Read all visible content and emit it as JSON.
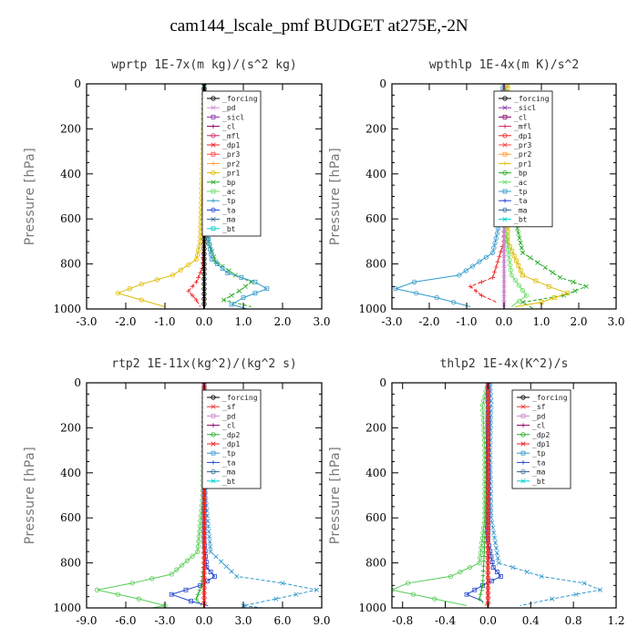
{
  "figure_title": "cam144_lscale_pmf  BUDGET at275E,-2N",
  "colors": {
    "forcing": "#000000",
    "sicl": "#cc88cc",
    "sicl2": "#8833aa",
    "cl": "#880066",
    "mfl": "#cc2266",
    "dp1": "#ee2222",
    "pr3": "#ff4444",
    "pr2": "#ff9933",
    "pr1": "#ddbb00",
    "bp": "#22aa22",
    "ac": "#66dd66",
    "tp": "#3399cc",
    "ta": "#2244cc",
    "ma": "#336699",
    "bt": "#00cccc",
    "sf": "#ee3333",
    "pd": "#ffaa33",
    "cl_yellow": "#ddbb00",
    "dp2": "#22aa22",
    "dp1_green": "#55cc55"
  },
  "chart_data": [
    {
      "type": "line",
      "title": "wprtp  1E-7x(m kg)/(s^2 kg)",
      "ylabel": "Pressure [hPa]",
      "xlim": [
        -3.0,
        3.0
      ],
      "ylim": [
        1000,
        0
      ],
      "x_ticks": [
        "-3.0",
        "-2.0",
        "-1.0",
        "0.0",
        "1.0",
        "2.0",
        "3.0"
      ],
      "y_ticks": [
        "0",
        "200",
        "400",
        "600",
        "800",
        "1000"
      ],
      "legend": [
        "_forcing",
        "_pd",
        "_sicl",
        "_cl",
        "_mfl",
        "_dp1",
        "_pr3",
        "_pr2",
        "_pr1",
        "_bp",
        "_ac",
        "_tp",
        "_ta",
        "_ma",
        "_bt"
      ],
      "series": [
        {
          "name": "_pr1",
          "color": "#ddbb00",
          "points": [
            [
              0,
              0
            ],
            [
              -0.05,
              400
            ],
            [
              -0.1,
              700
            ],
            [
              -0.2,
              780
            ],
            [
              -0.8,
              850
            ],
            [
              -1.6,
              890
            ],
            [
              -2.2,
              930
            ],
            [
              -1.6,
              960
            ],
            [
              -1.0,
              990
            ]
          ]
        },
        {
          "name": "_bp",
          "color": "#22aa22",
          "points": [
            [
              0,
              0
            ],
            [
              0.02,
              500
            ],
            [
              0.1,
              700
            ],
            [
              0.3,
              790
            ],
            [
              0.8,
              850
            ],
            [
              1.2,
              880
            ],
            [
              0.9,
              920
            ],
            [
              0.5,
              960
            ],
            [
              1.2,
              990
            ]
          ]
        },
        {
          "name": "_tp",
          "color": "#3399cc",
          "points": [
            [
              0,
              0
            ],
            [
              0.02,
              600
            ],
            [
              0.2,
              780
            ],
            [
              0.6,
              840
            ],
            [
              1.3,
              880
            ],
            [
              1.6,
              910
            ],
            [
              1.0,
              950
            ],
            [
              0.7,
              980
            ],
            [
              1.1,
              1000
            ]
          ]
        },
        {
          "name": "_dp1",
          "color": "#ee2222",
          "points": [
            [
              0,
              0
            ],
            [
              0,
              700
            ],
            [
              -0.05,
              820
            ],
            [
              -0.2,
              880
            ],
            [
              -0.4,
              920
            ],
            [
              -0.2,
              960
            ],
            [
              -0.1,
              990
            ]
          ]
        },
        {
          "name": "_forcing",
          "color": "#000000",
          "points": [
            [
              0,
              0
            ],
            [
              0,
              1000
            ]
          ]
        }
      ]
    },
    {
      "type": "line",
      "title": "wpthlp  1E-4x(m K)/s^2",
      "ylabel": "Pressure [hPa]",
      "xlim": [
        -3.0,
        3.0
      ],
      "ylim": [
        1000,
        0
      ],
      "x_ticks": [
        "-3.0",
        "-2.0",
        "-1.0",
        "0.0",
        "1.0",
        "2.0",
        "3.0"
      ],
      "y_ticks": [
        "0",
        "200",
        "400",
        "600",
        "800",
        "1000"
      ],
      "legend": [
        "_forcing",
        "_sicl",
        "_cl",
        "_mfl",
        "_dp1",
        "_pr3",
        "_pr2",
        "_pr1",
        "_bp",
        "_ac",
        "_tp",
        "_ta",
        "_ma",
        "_bt"
      ],
      "series": [
        {
          "name": "_tp",
          "color": "#3399cc",
          "points": [
            [
              0,
              0
            ],
            [
              -0.2,
              100
            ],
            [
              -0.2,
              200
            ],
            [
              -0.1,
              400
            ],
            [
              -0.1,
              600
            ],
            [
              -0.3,
              750
            ],
            [
              -1.2,
              850
            ],
            [
              -2.4,
              880
            ],
            [
              -2.9,
              910
            ],
            [
              -1.8,
              950
            ],
            [
              -0.9,
              990
            ]
          ]
        },
        {
          "name": "_bp",
          "color": "#22aa22",
          "points": [
            [
              0,
              0
            ],
            [
              0.2,
              100
            ],
            [
              0.2,
              200
            ],
            [
              0.2,
              400
            ],
            [
              0.3,
              600
            ],
            [
              0.5,
              750
            ],
            [
              1.5,
              860
            ],
            [
              2.2,
              900
            ],
            [
              1.6,
              940
            ],
            [
              0.5,
              970
            ],
            [
              0.8,
              1000
            ]
          ]
        },
        {
          "name": "_pr1",
          "color": "#ddbb00",
          "points": [
            [
              0.1,
              0
            ],
            [
              0.1,
              300
            ],
            [
              0.1,
              700
            ],
            [
              0.5,
              850
            ],
            [
              1.2,
              900
            ],
            [
              1.7,
              930
            ],
            [
              1.0,
              970
            ],
            [
              0.3,
              990
            ]
          ]
        },
        {
          "name": "_dp1",
          "color": "#ee2222",
          "points": [
            [
              0,
              0
            ],
            [
              0,
              700
            ],
            [
              -0.3,
              860
            ],
            [
              -0.9,
              900
            ],
            [
              -0.6,
              940
            ],
            [
              -0.2,
              970
            ]
          ]
        },
        {
          "name": "_ac",
          "color": "#66dd66",
          "points": [
            [
              0,
              0
            ],
            [
              0,
              600
            ],
            [
              0.2,
              850
            ],
            [
              0.6,
              940
            ],
            [
              0.2,
              990
            ]
          ]
        },
        {
          "name": "_forcing",
          "color": "#cc88cc",
          "points": [
            [
              0,
              0
            ],
            [
              0,
              1000
            ]
          ]
        }
      ]
    },
    {
      "type": "line",
      "title": "rtp2  1E-11x(kg^2)/(kg^2 s)",
      "ylabel": "Pressure [hPa]",
      "xlim": [
        -9.0,
        9.0
      ],
      "ylim": [
        1000,
        0
      ],
      "x_ticks": [
        "-9.0",
        "-6.0",
        "-3.0",
        "0.0",
        "3.0",
        "6.0",
        "9.0"
      ],
      "y_ticks": [
        "0",
        "200",
        "400",
        "600",
        "800",
        "1000"
      ],
      "legend": [
        "_forcing",
        "_sf",
        "_pd",
        "_cl",
        "_dp2",
        "_dp1",
        "_tp",
        "_ta",
        "_ma",
        "_bt"
      ],
      "series": [
        {
          "name": "_dp1",
          "color": "#55cc55",
          "points": [
            [
              0,
              0
            ],
            [
              -0.1,
              500
            ],
            [
              -0.5,
              750
            ],
            [
              -2.5,
              850
            ],
            [
              -5.5,
              890
            ],
            [
              -8.2,
              920
            ],
            [
              -5.0,
              960
            ],
            [
              -3.0,
              990
            ],
            [
              -4.0,
              1000
            ]
          ]
        },
        {
          "name": "_tp",
          "color": "#3399cc",
          "points": [
            [
              0,
              0
            ],
            [
              0.1,
              500
            ],
            [
              0.5,
              750
            ],
            [
              2.5,
              860
            ],
            [
              6.0,
              890
            ],
            [
              8.6,
              920
            ],
            [
              5.5,
              960
            ],
            [
              3.0,
              990
            ],
            [
              4.5,
              1000
            ]
          ]
        },
        {
          "name": "_ta",
          "color": "#2244cc",
          "points": [
            [
              0,
              0
            ],
            [
              0,
              700
            ],
            [
              0.2,
              820
            ],
            [
              0.8,
              860
            ],
            [
              -0.3,
              900
            ],
            [
              -2.5,
              940
            ],
            [
              -1.0,
              970
            ],
            [
              0.3,
              990
            ]
          ]
        },
        {
          "name": "_dp2",
          "color": "#22aa22",
          "points": [
            [
              0,
              0
            ],
            [
              0,
              800
            ],
            [
              -0.2,
              900
            ],
            [
              -0.6,
              960
            ],
            [
              -0.2,
              990
            ]
          ]
        },
        {
          "name": "_forcing",
          "color": "#ee2222",
          "points": [
            [
              0,
              0
            ],
            [
              0,
              1000
            ]
          ]
        }
      ]
    },
    {
      "type": "line",
      "title": "thlp2  1E-4x(K^2)/s",
      "ylabel": "Pressure [hPa]",
      "xlim": [
        -0.9,
        1.2
      ],
      "ylim": [
        1000,
        0
      ],
      "x_ticks": [
        "-0.8",
        "-0.4",
        "0.0",
        "0.4",
        "0.8",
        "1.2"
      ],
      "x_tick_values": [
        -0.8,
        -0.4,
        0.0,
        0.4,
        0.8,
        1.2
      ],
      "y_ticks": [
        "0",
        "200",
        "400",
        "600",
        "800",
        "1000"
      ],
      "legend": [
        "_forcing",
        "_sf",
        "_pd",
        "_cl",
        "_dp2",
        "_dp1",
        "_tp",
        "_ta",
        "_ma",
        "_bt"
      ],
      "series": [
        {
          "name": "_dp1",
          "color": "#55cc55",
          "points": [
            [
              0,
              0
            ],
            [
              -0.05,
              100
            ],
            [
              -0.03,
              300
            ],
            [
              -0.03,
              600
            ],
            [
              -0.08,
              800
            ],
            [
              -0.35,
              860
            ],
            [
              -0.75,
              890
            ],
            [
              -0.9,
              920
            ],
            [
              -0.5,
              960
            ],
            [
              -0.2,
              990
            ]
          ]
        },
        {
          "name": "_tp",
          "color": "#3399cc",
          "points": [
            [
              0.02,
              0
            ],
            [
              0.03,
              100
            ],
            [
              0.02,
              300
            ],
            [
              0.03,
              600
            ],
            [
              0.1,
              800
            ],
            [
              0.5,
              860
            ],
            [
              0.9,
              890
            ],
            [
              1.05,
              920
            ],
            [
              0.6,
              960
            ],
            [
              0.3,
              990
            ]
          ]
        },
        {
          "name": "_ta",
          "color": "#2244cc",
          "points": [
            [
              0,
              0
            ],
            [
              0,
              700
            ],
            [
              0.05,
              820
            ],
            [
              0.12,
              860
            ],
            [
              -0.05,
              900
            ],
            [
              -0.2,
              940
            ],
            [
              -0.05,
              970
            ]
          ]
        },
        {
          "name": "_dp2",
          "color": "#22aa22",
          "points": [
            [
              0,
              0
            ],
            [
              -0.02,
              600
            ],
            [
              -0.05,
              900
            ],
            [
              -0.08,
              960
            ],
            [
              -0.02,
              990
            ]
          ]
        },
        {
          "name": "_forcing",
          "color": "#ee2222",
          "points": [
            [
              0,
              0
            ],
            [
              0,
              1000
            ]
          ]
        }
      ]
    }
  ]
}
